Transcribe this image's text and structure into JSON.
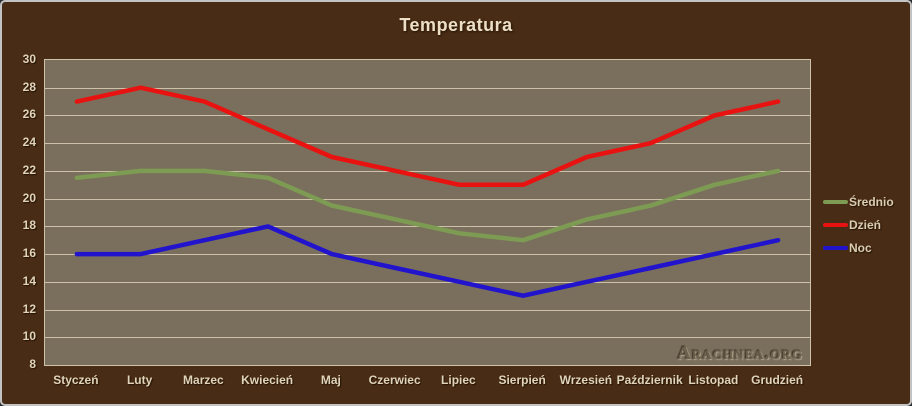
{
  "window": {
    "title": "Temperatura"
  },
  "chart_data": {
    "type": "line",
    "title": "Temperatura",
    "categories": [
      "Styczeń",
      "Luty",
      "Marzec",
      "Kwiecień",
      "Maj",
      "Czerwiec",
      "Lipiec",
      "Sierpień",
      "Wrzesień",
      "Październik",
      "Listopad",
      "Grudzień"
    ],
    "series": [
      {
        "name": "Średnio",
        "color": "#7d9b52",
        "values": [
          21.5,
          22,
          22,
          21.5,
          19.5,
          18.5,
          17.5,
          17,
          18.5,
          19.5,
          21,
          22
        ]
      },
      {
        "name": "Dzień",
        "color": "#e81311",
        "values": [
          27,
          28,
          27,
          25,
          23,
          22,
          21,
          21,
          23,
          24,
          26,
          27
        ]
      },
      {
        "name": "Noc",
        "color": "#2214cd",
        "values": [
          16,
          16,
          17,
          18,
          16,
          15,
          14,
          13,
          14,
          15,
          16,
          17
        ]
      }
    ],
    "xlabel": "",
    "ylabel": "",
    "ylim": [
      8,
      30
    ],
    "yticks": [
      30,
      28,
      26,
      24,
      22,
      20,
      18,
      16,
      14,
      12,
      10,
      8
    ],
    "grid": true,
    "legend_position": "right",
    "legend_order": [
      "Średnio",
      "Dzień",
      "Noc"
    ]
  },
  "watermark": "Arachnea.org",
  "colors": {
    "background": "#492c15",
    "frame_border": "#c3c3c3",
    "plot_background": "#7a6f5c",
    "plot_border": "#cdc2a9",
    "gridline": "#cdc2a9",
    "title_text": "#ecdfc5",
    "axis_label_text": "#e0d4ba",
    "legend_text": "#d9cdb2",
    "watermark_text": "#6b614d"
  }
}
